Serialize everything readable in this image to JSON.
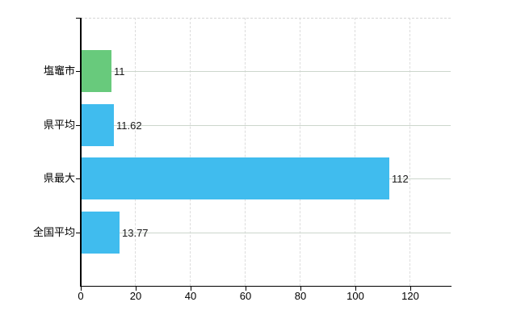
{
  "chart_data": {
    "type": "bar",
    "orientation": "horizontal",
    "title": "",
    "xlabel": "",
    "ylabel": "",
    "categories": [
      "塩竈市",
      "県平均",
      "県最大",
      "全国平均"
    ],
    "values": [
      11,
      11.62,
      112,
      13.77
    ],
    "value_labels": [
      "11",
      "11.62",
      "112",
      "13.77"
    ],
    "bar_colors": [
      "#68ca7c",
      "#40bcee",
      "#40bcee",
      "#40bcee"
    ],
    "x_ticks": [
      0,
      20,
      40,
      60,
      80,
      100,
      120
    ],
    "x_tick_labels": [
      "0",
      "20",
      "40",
      "60",
      "80",
      "100",
      "120"
    ],
    "xlim": [
      0,
      134.7
    ],
    "grid": true,
    "legend_position": "none"
  },
  "colors": {
    "background": "#ffffff",
    "axis": "#000000",
    "vertical_grid": "#dcdcdc",
    "horizontal_grid": "#ccd6cc",
    "plot_border": "#d6d6d6",
    "text": "#000000",
    "bar_green": "#68ca7c",
    "bar_blue": "#40bcee"
  }
}
